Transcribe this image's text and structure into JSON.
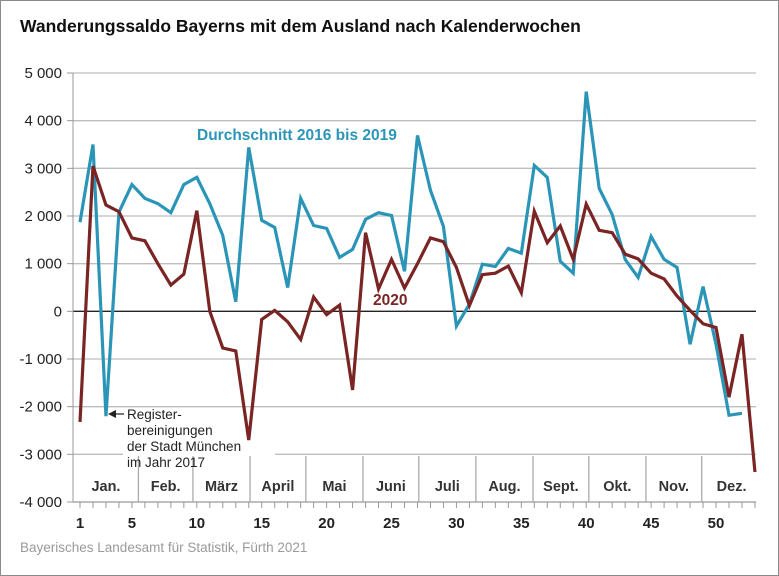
{
  "chart_data": {
    "type": "line",
    "title": "Wanderungssaldo Bayerns mit dem Ausland nach Kalenderwochen",
    "xlabel": "",
    "ylabel": "",
    "ylim": [
      -4000,
      5000
    ],
    "xlim": [
      1,
      53
    ],
    "grid": true,
    "y_ticks": [
      5000,
      4000,
      3000,
      2000,
      1000,
      0,
      -1000,
      -2000,
      -3000,
      -4000
    ],
    "y_tick_labels": [
      "5 000",
      "4 000",
      "3 000",
      "2 000",
      "1 000",
      "0",
      "-1 000",
      "-2 000",
      "-3 000",
      "-4 000"
    ],
    "x_ticks": [
      1,
      5,
      10,
      15,
      20,
      25,
      30,
      35,
      40,
      45,
      50
    ],
    "x_tick_labels": [
      "1",
      "5",
      "10",
      "15",
      "20",
      "25",
      "30",
      "35",
      "40",
      "45",
      "50"
    ],
    "months": [
      {
        "label": "Jan.",
        "start": 0.5,
        "end": 5.5
      },
      {
        "label": "Feb.",
        "start": 5.5,
        "end": 9.7
      },
      {
        "label": "März",
        "start": 9.7,
        "end": 14.1
      },
      {
        "label": "April",
        "start": 14.1,
        "end": 18.4
      },
      {
        "label": "Mai",
        "start": 18.4,
        "end": 22.8
      },
      {
        "label": "Juni",
        "start": 22.8,
        "end": 27.1
      },
      {
        "label": "Juli",
        "start": 27.1,
        "end": 31.5
      },
      {
        "label": "Aug.",
        "start": 31.5,
        "end": 35.9
      },
      {
        "label": "Sept.",
        "start": 35.9,
        "end": 40.2
      },
      {
        "label": "Okt.",
        "start": 40.2,
        "end": 44.6
      },
      {
        "label": "Nov.",
        "start": 44.6,
        "end": 48.9
      },
      {
        "label": "Dez.",
        "start": 48.9,
        "end": 53.5
      }
    ],
    "series": [
      {
        "name": "Durchschnitt 2016 bis 2019",
        "color": "#2b95b8",
        "x": [
          1,
          2,
          3,
          4,
          5,
          6,
          7,
          8,
          9,
          10,
          11,
          12,
          13,
          14,
          15,
          16,
          17,
          18,
          19,
          20,
          21,
          22,
          23,
          24,
          25,
          26,
          27,
          28,
          29,
          30,
          31,
          32,
          33,
          34,
          35,
          36,
          37,
          38,
          39,
          40,
          41,
          42,
          43,
          44,
          45,
          46,
          47,
          48,
          49,
          50,
          51,
          52
        ],
        "values": [
          1870,
          3500,
          -2200,
          2080,
          2660,
          2370,
          2260,
          2070,
          2660,
          2810,
          2260,
          1590,
          200,
          3440,
          1910,
          1760,
          500,
          2370,
          1800,
          1740,
          1130,
          1300,
          1930,
          2070,
          2010,
          840,
          3690,
          2540,
          1780,
          -310,
          150,
          990,
          940,
          1320,
          1220,
          3060,
          2810,
          1050,
          800,
          4610,
          2580,
          2030,
          1090,
          710,
          1570,
          1090,
          920,
          -690,
          520,
          -690,
          -2180,
          -2140
        ]
      },
      {
        "name": "2020",
        "color": "#7a2424",
        "x": [
          1,
          2,
          3,
          4,
          5,
          6,
          7,
          8,
          9,
          10,
          11,
          12,
          13,
          14,
          15,
          16,
          17,
          18,
          19,
          20,
          21,
          22,
          23,
          24,
          25,
          26,
          27,
          28,
          29,
          30,
          31,
          32,
          33,
          34,
          35,
          36,
          37,
          38,
          39,
          40,
          41,
          42,
          43,
          44,
          45,
          46,
          47,
          48,
          49,
          50,
          51,
          52,
          53
        ],
        "values": [
          -2320,
          3050,
          2230,
          2090,
          1540,
          1480,
          1000,
          550,
          780,
          2110,
          0,
          -770,
          -830,
          -2700,
          -170,
          20,
          -220,
          -590,
          300,
          -70,
          130,
          -1650,
          1650,
          470,
          1090,
          490,
          1000,
          1540,
          1460,
          920,
          120,
          770,
          800,
          950,
          390,
          2100,
          1440,
          1790,
          1090,
          2250,
          1700,
          1650,
          1200,
          1100,
          800,
          680,
          320,
          20,
          -260,
          -340,
          -1800,
          -480,
          -3370
        ]
      }
    ],
    "annotations": [
      {
        "text_lines": [
          "Register-",
          "bereinigungen",
          "der Stadt München",
          "im Jahr 2017"
        ],
        "points_to_week": 3,
        "series": "Durchschnitt 2016 bis 2019"
      }
    ]
  },
  "source": "Bayerisches Landesamt für Statistik, Fürth 2021"
}
